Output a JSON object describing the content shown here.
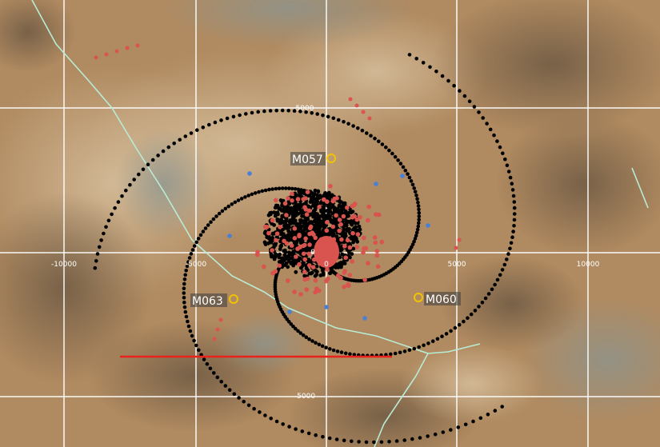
{
  "map": {
    "grid": true,
    "x_ticks": [
      "-10000",
      "-5000",
      "0",
      "5000",
      "10000"
    ],
    "y_ticks": [
      "5000",
      "0",
      "-5000"
    ],
    "stations": [
      {
        "label": "M057",
        "marker": "yellow-circle"
      },
      {
        "label": "M063",
        "marker": "yellow-circle"
      },
      {
        "label": "M060",
        "marker": "yellow-circle"
      }
    ],
    "colors": {
      "terrain": "#b08a60",
      "grid": "#ffffff",
      "spiral_dots": "#000000",
      "red_points": "#d9534f",
      "blue_points": "#4a7fd6",
      "scale_bar": "#e8231b",
      "road": "#b8ecd6",
      "station_ring": "#f2c200"
    },
    "layers": [
      "satellite-imagery",
      "spiral-survey-points",
      "event-cluster",
      "road",
      "scale-bar",
      "station-markers"
    ]
  }
}
